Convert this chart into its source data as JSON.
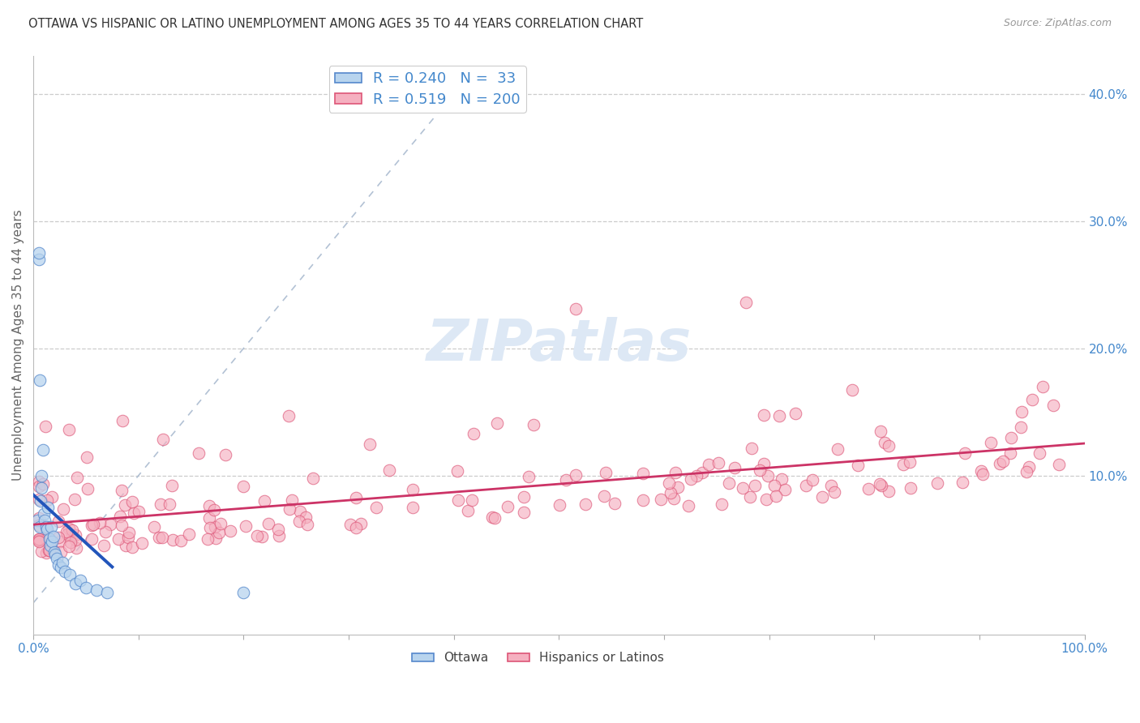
{
  "title": "OTTAWA VS HISPANIC OR LATINO UNEMPLOYMENT AMONG AGES 35 TO 44 YEARS CORRELATION CHART",
  "source": "Source: ZipAtlas.com",
  "ylabel": "Unemployment Among Ages 35 to 44 years",
  "xlim": [
    0.0,
    1.0
  ],
  "ylim": [
    -0.025,
    0.43
  ],
  "xticks": [
    0.0,
    0.1,
    0.2,
    0.3,
    0.4,
    0.5,
    0.6,
    0.7,
    0.8,
    0.9,
    1.0
  ],
  "xticklabels": [
    "0.0%",
    "",
    "",
    "",
    "",
    "",
    "",
    "",
    "",
    "",
    "100.0%"
  ],
  "yticks_right": [
    0.0,
    0.1,
    0.2,
    0.3,
    0.4
  ],
  "yticklabels_right": [
    "",
    "10.0%",
    "20.0%",
    "30.0%",
    "40.0%"
  ],
  "ottawa_fill": "#b8d4ee",
  "ottawa_edge": "#5588cc",
  "hispanic_fill": "#f5b0c0",
  "hispanic_edge": "#dd5577",
  "trend_blue": "#2255bb",
  "trend_pink": "#cc3366",
  "trend_dash": "#aabbd0",
  "watermark": "#dde8f5",
  "r_ottawa": 0.24,
  "n_ottawa": 33,
  "r_hispanic": 0.519,
  "n_hispanic": 200,
  "label_ottawa": "Ottawa",
  "label_hispanic": "Hispanics or Latinos",
  "grid_color": "#cccccc",
  "bg_color": "#ffffff",
  "title_color": "#333333",
  "axis_tick_color": "#4488cc",
  "figsize": [
    14.06,
    8.92
  ],
  "dpi": 100,
  "ottawa_x": [
    0.004,
    0.005,
    0.005,
    0.006,
    0.006,
    0.007,
    0.008,
    0.008,
    0.009,
    0.01,
    0.011,
    0.012,
    0.013,
    0.014,
    0.015,
    0.016,
    0.017,
    0.018,
    0.019,
    0.02,
    0.021,
    0.022,
    0.024,
    0.026,
    0.028,
    0.03,
    0.035,
    0.04,
    0.045,
    0.05,
    0.06,
    0.07,
    0.2
  ],
  "ottawa_y": [
    0.065,
    0.27,
    0.275,
    0.06,
    0.175,
    0.08,
    0.09,
    0.1,
    0.12,
    0.07,
    0.065,
    0.06,
    0.058,
    0.075,
    0.05,
    0.045,
    0.06,
    0.048,
    0.052,
    0.04,
    0.038,
    0.035,
    0.03,
    0.028,
    0.032,
    0.025,
    0.022,
    0.015,
    0.018,
    0.012,
    0.01,
    0.008,
    0.008
  ]
}
